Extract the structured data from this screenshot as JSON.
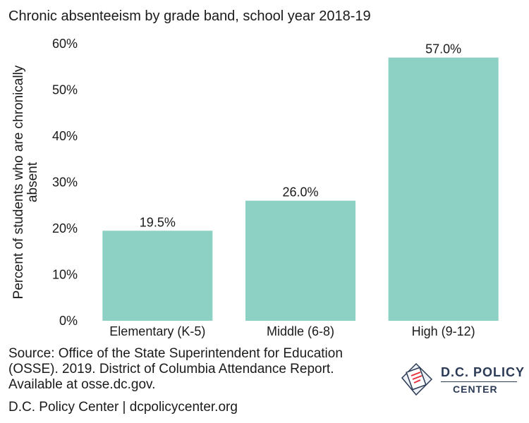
{
  "title": "Chronic absenteeism by grade band, school year 2018-19",
  "source_text": "Source: Office of the State Superintendent for Education (OSSE). 2019. District of Columbia Attendance Report. Available at osse.dc.gov.",
  "footer_text": "D.C. Policy Center | dcpolicycenter.org",
  "logo": {
    "name": "D.C. POLICY",
    "sub": "CENTER",
    "icon": "dc-map-document-icon"
  },
  "colors": {
    "bar": "#8dd1c4",
    "text": "#1a1a1a",
    "logo": "#2b3a55",
    "accent": "#e8303a"
  },
  "chart_data": {
    "type": "bar",
    "categories": [
      "Elementary (K-5)",
      "Middle (6-8)",
      "High (9-12)"
    ],
    "values": [
      19.5,
      26.0,
      57.0
    ],
    "data_labels": [
      "19.5%",
      "26.0%",
      "57.0%"
    ],
    "title": "Chronic absenteeism by grade band, school year 2018-19",
    "xlabel": "",
    "ylabel": "Percent of students who are chronically absent",
    "ylim": [
      0,
      60
    ],
    "yticks": [
      0,
      10,
      20,
      30,
      40,
      50,
      60
    ],
    "ytick_labels": [
      "0%",
      "10%",
      "20%",
      "30%",
      "40%",
      "50%",
      "60%"
    ],
    "grid": false,
    "legend": "none"
  }
}
